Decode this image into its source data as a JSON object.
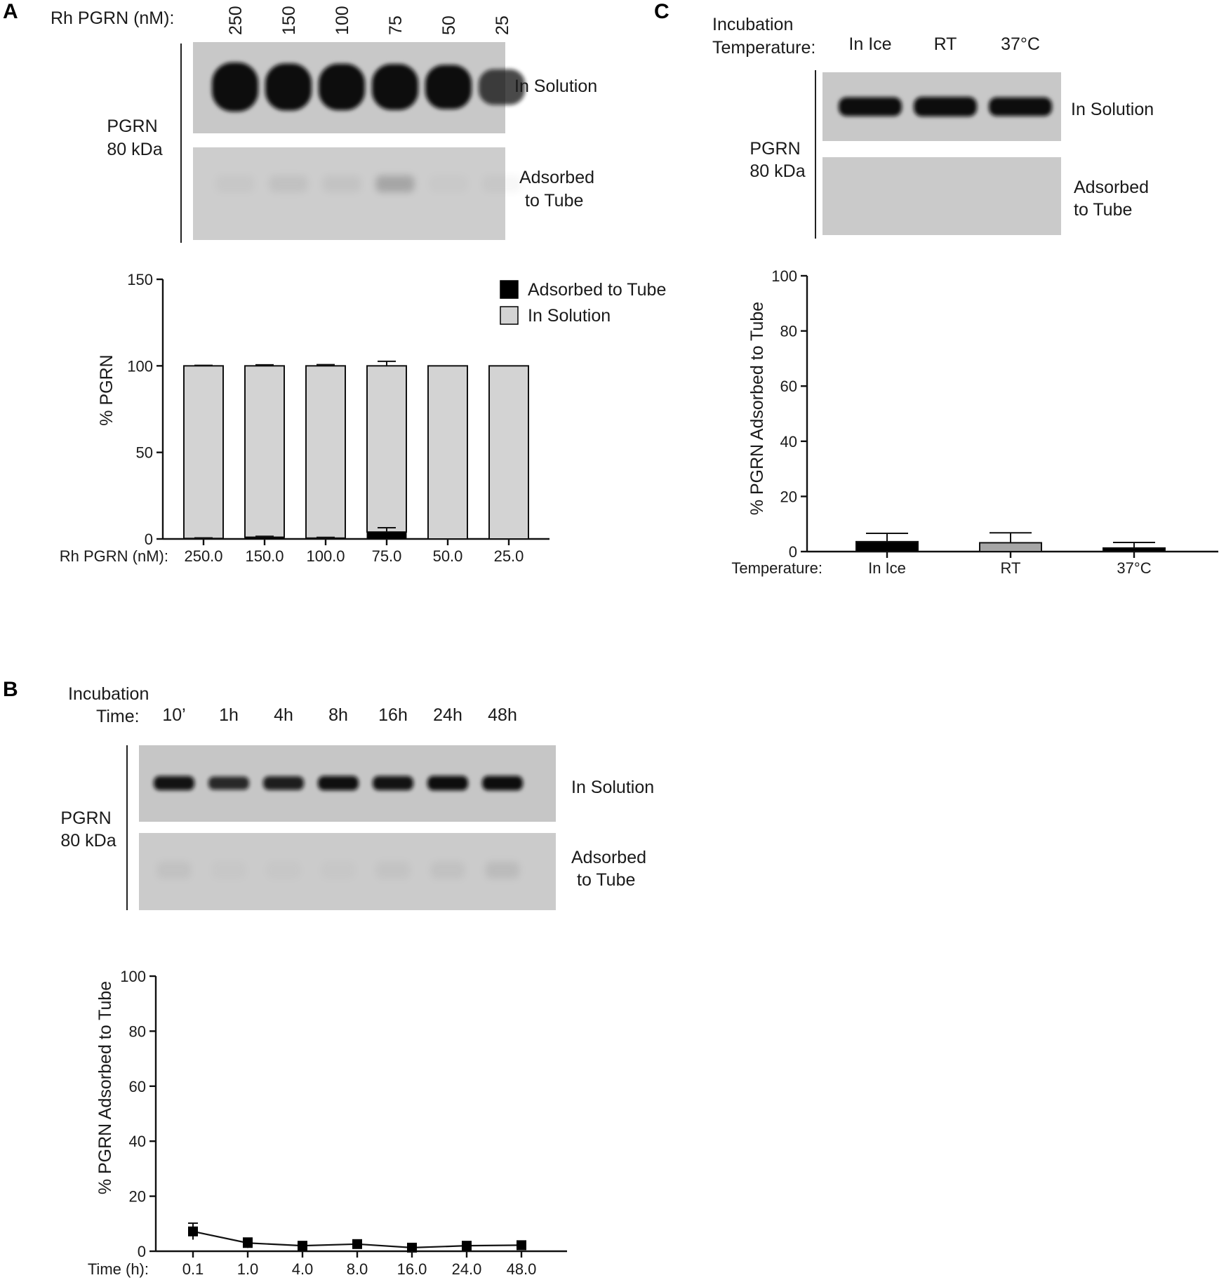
{
  "panels": {
    "a": {
      "letter": "A",
      "blot": {
        "header_label": "Rh PGRN (nM):",
        "lanes": [
          "250",
          "150",
          "100",
          "75",
          "50",
          "25"
        ],
        "protein_label": [
          "PGRN",
          "80 kDa"
        ],
        "row_labels": {
          "solution": [
            "In Solution"
          ],
          "adsorbed": [
            "Adsorbed",
            "to Tube"
          ]
        },
        "solution_band_intensity": [
          1.0,
          0.92,
          0.9,
          0.88,
          0.82,
          0.5
        ],
        "adsorbed_band_intensity": [
          0.03,
          0.06,
          0.05,
          0.2,
          0.02,
          0.03
        ]
      }
    },
    "b": {
      "letter": "B",
      "blot": {
        "header_label": [
          "Incubation",
          "Time:"
        ],
        "lanes": [
          "10’",
          "1h",
          "4h",
          "8h",
          "16h",
          "24h",
          "48h"
        ],
        "protein_label": [
          "PGRN",
          "80 kDa"
        ],
        "row_labels": {
          "solution": [
            "In Solution"
          ],
          "adsorbed": [
            "Adsorbed",
            "to Tube"
          ]
        },
        "solution_band_intensity": [
          0.72,
          0.6,
          0.66,
          0.74,
          0.72,
          0.76,
          0.76
        ],
        "adsorbed_band_intensity": [
          0.05,
          0.02,
          0.02,
          0.02,
          0.04,
          0.05,
          0.08
        ]
      }
    },
    "c": {
      "letter": "C",
      "blot": {
        "header_label": [
          "Incubation",
          "Temperature:"
        ],
        "lanes": [
          "In Ice",
          "RT",
          "37°C"
        ],
        "protein_label": [
          "PGRN",
          "80 kDa"
        ],
        "row_labels": {
          "solution": [
            "In Solution"
          ],
          "adsorbed": [
            "Adsorbed",
            "to Tube"
          ]
        },
        "solution_band_intensity": [
          0.82,
          0.88,
          0.8
        ],
        "adsorbed_band_intensity": [
          0.0,
          0.0,
          0.0
        ]
      }
    }
  },
  "colors": {
    "adsorbed_bar": "#000000",
    "solution_bar": "#d3d3d3",
    "rt_bar": "#a6a6a6",
    "blot_background": "#c9c9c9",
    "band": "#0a0a0a"
  },
  "chart_data": [
    {
      "panel": "A",
      "type": "bar",
      "stacked": true,
      "categories": [
        "250.0",
        "150.0",
        "100.0",
        "75.0",
        "50.0",
        "25.0"
      ],
      "category_axis_label": "Rh PGRN (nM):",
      "ylabel": "% PGRN",
      "ylim": [
        0,
        150
      ],
      "yticks": [
        0,
        50,
        100,
        150
      ],
      "legend_position": "top-right",
      "series": [
        {
          "name": "Adsorbed to Tube",
          "color": "#000000",
          "values": [
            0.3,
            1.0,
            0.5,
            4.0,
            0.0,
            0.0
          ],
          "error": [
            0.3,
            0.5,
            0.4,
            2.5,
            0.0,
            0.0
          ]
        },
        {
          "name": "In Solution",
          "color": "#d3d3d3",
          "values": [
            99.7,
            99.0,
            99.5,
            96.0,
            100.0,
            100.0
          ],
          "error": [
            0.3,
            0.6,
            0.7,
            2.6,
            0.0,
            0.0
          ]
        }
      ]
    },
    {
      "panel": "B",
      "type": "line",
      "x": [
        "0.1",
        "1.0",
        "4.0",
        "8.0",
        "16.0",
        "24.0",
        "48.0"
      ],
      "category_axis_label": "Time (h):",
      "ylabel": "% PGRN Adsorbed to Tube",
      "ylim": [
        0,
        100
      ],
      "yticks": [
        0,
        20,
        40,
        60,
        80,
        100
      ],
      "series": [
        {
          "values": [
            7.2,
            3.0,
            2.0,
            2.6,
            1.3,
            2.0,
            2.2
          ],
          "error": [
            3.0,
            1.8,
            0.8,
            0.6,
            0.7,
            0.6,
            0.6
          ]
        }
      ]
    },
    {
      "panel": "C",
      "type": "bar",
      "categories": [
        "In Ice",
        "RT",
        "37°C"
      ],
      "category_axis_label": "Temperature:",
      "ylabel": "% PGRN Adsorbed to Tube",
      "ylim": [
        0,
        100
      ],
      "yticks": [
        0,
        20,
        40,
        60,
        80,
        100
      ],
      "series": [
        {
          "values": [
            3.6,
            3.2,
            1.3
          ],
          "error": [
            3.0,
            3.6,
            2.0
          ],
          "colors": [
            "#000000",
            "#a6a6a6",
            "#000000"
          ]
        }
      ]
    }
  ]
}
